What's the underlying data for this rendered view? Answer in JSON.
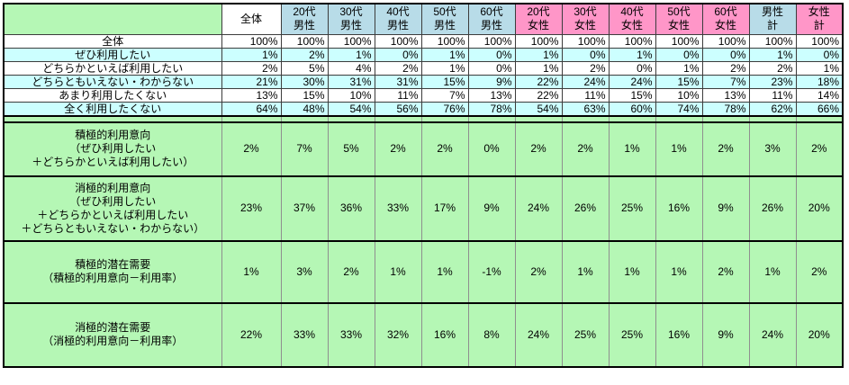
{
  "chart_data": {
    "type": "table",
    "unit": "%",
    "columns": [
      {
        "id": "overall",
        "label": "全体",
        "group": "overall"
      },
      {
        "id": "m20",
        "label": "20代\n男性",
        "group": "male"
      },
      {
        "id": "m30",
        "label": "30代\n男性",
        "group": "male"
      },
      {
        "id": "m40",
        "label": "40代\n男性",
        "group": "male"
      },
      {
        "id": "m50",
        "label": "50代\n男性",
        "group": "male"
      },
      {
        "id": "m60",
        "label": "60代\n男性",
        "group": "male"
      },
      {
        "id": "f20",
        "label": "20代\n女性",
        "group": "female"
      },
      {
        "id": "f30",
        "label": "30代\n女性",
        "group": "female"
      },
      {
        "id": "f40",
        "label": "40代\n女性",
        "group": "female"
      },
      {
        "id": "f50",
        "label": "50代\n女性",
        "group": "female"
      },
      {
        "id": "f60",
        "label": "60代\n女性",
        "group": "female"
      },
      {
        "id": "m-total",
        "label": "男性\n計",
        "group": "male"
      },
      {
        "id": "f-total",
        "label": "女性\n計",
        "group": "female"
      }
    ],
    "upper_rows": [
      {
        "id": "total",
        "label": "全体",
        "shade": "white",
        "values": [
          "100%",
          "100%",
          "100%",
          "100%",
          "100%",
          "100%",
          "100%",
          "100%",
          "100%",
          "100%",
          "100%",
          "100%",
          "100%"
        ]
      },
      {
        "id": "use-definitely",
        "label": "ぜひ利用したい",
        "shade": "cyan",
        "values": [
          "1%",
          "2%",
          "1%",
          "0%",
          "1%",
          "0%",
          "1%",
          "0%",
          "1%",
          "0%",
          "0%",
          "1%",
          "0%"
        ]
      },
      {
        "id": "use-somewhat",
        "label": "どちらかといえば利用したい",
        "shade": "white",
        "values": [
          "2%",
          "5%",
          "4%",
          "2%",
          "1%",
          "0%",
          "1%",
          "2%",
          "0%",
          "1%",
          "2%",
          "2%",
          "1%"
        ]
      },
      {
        "id": "neutral-unknown",
        "label": "どちらともいえない・わからない",
        "shade": "cyan",
        "values": [
          "21%",
          "30%",
          "31%",
          "31%",
          "15%",
          "9%",
          "22%",
          "24%",
          "24%",
          "15%",
          "7%",
          "23%",
          "18%"
        ]
      },
      {
        "id": "use-not-really",
        "label": "あまり利用したくない",
        "shade": "white",
        "values": [
          "13%",
          "15%",
          "10%",
          "11%",
          "7%",
          "13%",
          "22%",
          "11%",
          "15%",
          "10%",
          "13%",
          "11%",
          "14%"
        ]
      },
      {
        "id": "use-never",
        "label": "全く利用したくない",
        "shade": "cyan",
        "values": [
          "64%",
          "48%",
          "54%",
          "56%",
          "76%",
          "78%",
          "54%",
          "63%",
          "60%",
          "74%",
          "78%",
          "62%",
          "66%"
        ]
      }
    ],
    "summary_rows": [
      {
        "id": "positive-intent",
        "label": "積極的利用意向\n（ぜひ利用したい\n＋どちらかといえば利用したい）",
        "values": [
          "2%",
          "7%",
          "5%",
          "2%",
          "2%",
          "0%",
          "2%",
          "2%",
          "1%",
          "1%",
          "2%",
          "3%",
          "2%"
        ]
      },
      {
        "id": "negative-intent",
        "label": "消極的利用意向\n（ぜひ利用したい\n＋どちらかといえば利用したい\n＋どちらともいえない・わからない）",
        "values": [
          "23%",
          "37%",
          "36%",
          "33%",
          "17%",
          "9%",
          "24%",
          "26%",
          "25%",
          "16%",
          "9%",
          "26%",
          "20%"
        ]
      },
      {
        "id": "positive-latent-demand",
        "label": "積極的潜在需要\n（積極的利用意向－利用率）",
        "values": [
          "1%",
          "3%",
          "2%",
          "1%",
          "1%",
          "-1%",
          "2%",
          "1%",
          "1%",
          "1%",
          "2%",
          "1%",
          "2%"
        ]
      },
      {
        "id": "negative-latent-demand",
        "label": "消極的潜在需要\n（消極的利用意向－利用率）",
        "values": [
          "22%",
          "33%",
          "33%",
          "32%",
          "16%",
          "8%",
          "24%",
          "25%",
          "25%",
          "16%",
          "9%",
          "24%",
          "20%"
        ]
      }
    ],
    "colors": {
      "section_green": "#b5f7b5",
      "male_header_blue": "#b8dce8",
      "female_header_pink": "#ff96c8",
      "row_cyan": "#ccffff",
      "grid_line": "#3c3c3c",
      "summary_grid_line": "#8f8f8f",
      "frame_black": "#000000"
    }
  }
}
